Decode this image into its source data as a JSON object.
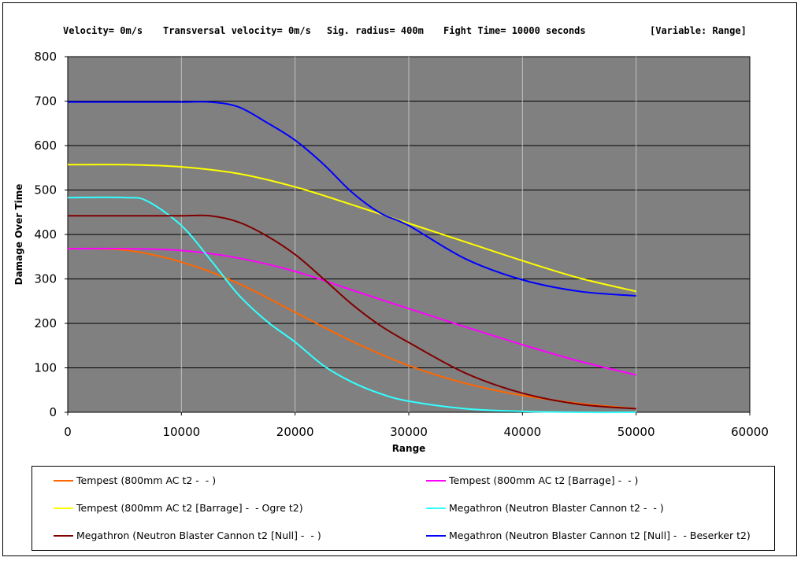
{
  "header": {
    "velocity": "Velocity= 0m/s",
    "transversal": "Transversal velocity= 0m/s",
    "sig_radius": "Sig. radius= 400m",
    "fight_time": "Fight Time= 10000 seconds",
    "variable": "[Variable: Range]"
  },
  "chart_data": {
    "type": "line",
    "xlabel": "Range",
    "ylabel": "Damage Over Time",
    "xlim": [
      0,
      60000
    ],
    "ylim": [
      0,
      800
    ],
    "xticks": [
      "0",
      "10000",
      "20000",
      "30000",
      "40000",
      "50000",
      "60000"
    ],
    "yticks": [
      "0",
      "100",
      "200",
      "300",
      "400",
      "500",
      "600",
      "700",
      "800"
    ],
    "grid": true,
    "plot_background": "#808080",
    "legend_position": "bottom",
    "series": [
      {
        "name": "Tempest (800mm AC t2 -  - )",
        "color": "#ff6600",
        "x": [
          0,
          5000,
          10000,
          15000,
          20000,
          25000,
          30000,
          35000,
          40000,
          45000,
          50000
        ],
        "values": [
          368,
          365,
          338,
          290,
          225,
          160,
          105,
          65,
          38,
          20,
          8
        ]
      },
      {
        "name": "Tempest (800mm AC t2 [Barrage] -  - )",
        "color": "#ff00ff",
        "x": [
          0,
          5000,
          10000,
          15000,
          20000,
          25000,
          30000,
          35000,
          40000,
          45000,
          50000
        ],
        "values": [
          368,
          368,
          364,
          347,
          317,
          275,
          233,
          192,
          152,
          115,
          84
        ]
      },
      {
        "name": "Tempest (800mm AC t2 [Barrage] -  - Ogre t2)",
        "color": "#ffff00",
        "x": [
          0,
          5000,
          10000,
          15000,
          20000,
          25000,
          30000,
          35000,
          40000,
          45000,
          50000
        ],
        "values": [
          557,
          557,
          552,
          537,
          507,
          467,
          425,
          383,
          341,
          302,
          272
        ]
      },
      {
        "name": "Megathron (Neutron Blaster Cannon t2 -  - )",
        "color": "#33ffff",
        "x": [
          0,
          5000,
          7000,
          10000,
          12500,
          15000,
          17500,
          20000,
          22500,
          25000,
          27500,
          30000,
          35000,
          40000,
          45000,
          50000
        ],
        "values": [
          483,
          483,
          475,
          420,
          345,
          265,
          205,
          158,
          105,
          68,
          42,
          25,
          8,
          2,
          0,
          0
        ]
      },
      {
        "name": "Megathron (Neutron Blaster Cannon t2 [Null] -  - )",
        "color": "#800000",
        "x": [
          0,
          5000,
          10000,
          12500,
          15000,
          17500,
          20000,
          22500,
          25000,
          27500,
          30000,
          35000,
          40000,
          45000,
          50000
        ],
        "values": [
          442,
          442,
          442,
          442,
          428,
          397,
          355,
          300,
          243,
          195,
          157,
          88,
          43,
          18,
          8
        ]
      },
      {
        "name": "Megathron (Neutron Blaster Cannon t2 [Null] -  - Beserker t2)",
        "color": "#0000ff",
        "x": [
          0,
          5000,
          10000,
          12500,
          15000,
          17500,
          20000,
          22500,
          25000,
          27500,
          30000,
          35000,
          40000,
          45000,
          50000
        ],
        "values": [
          698,
          698,
          698,
          698,
          687,
          652,
          612,
          558,
          495,
          448,
          420,
          345,
          298,
          272,
          262
        ]
      }
    ]
  }
}
